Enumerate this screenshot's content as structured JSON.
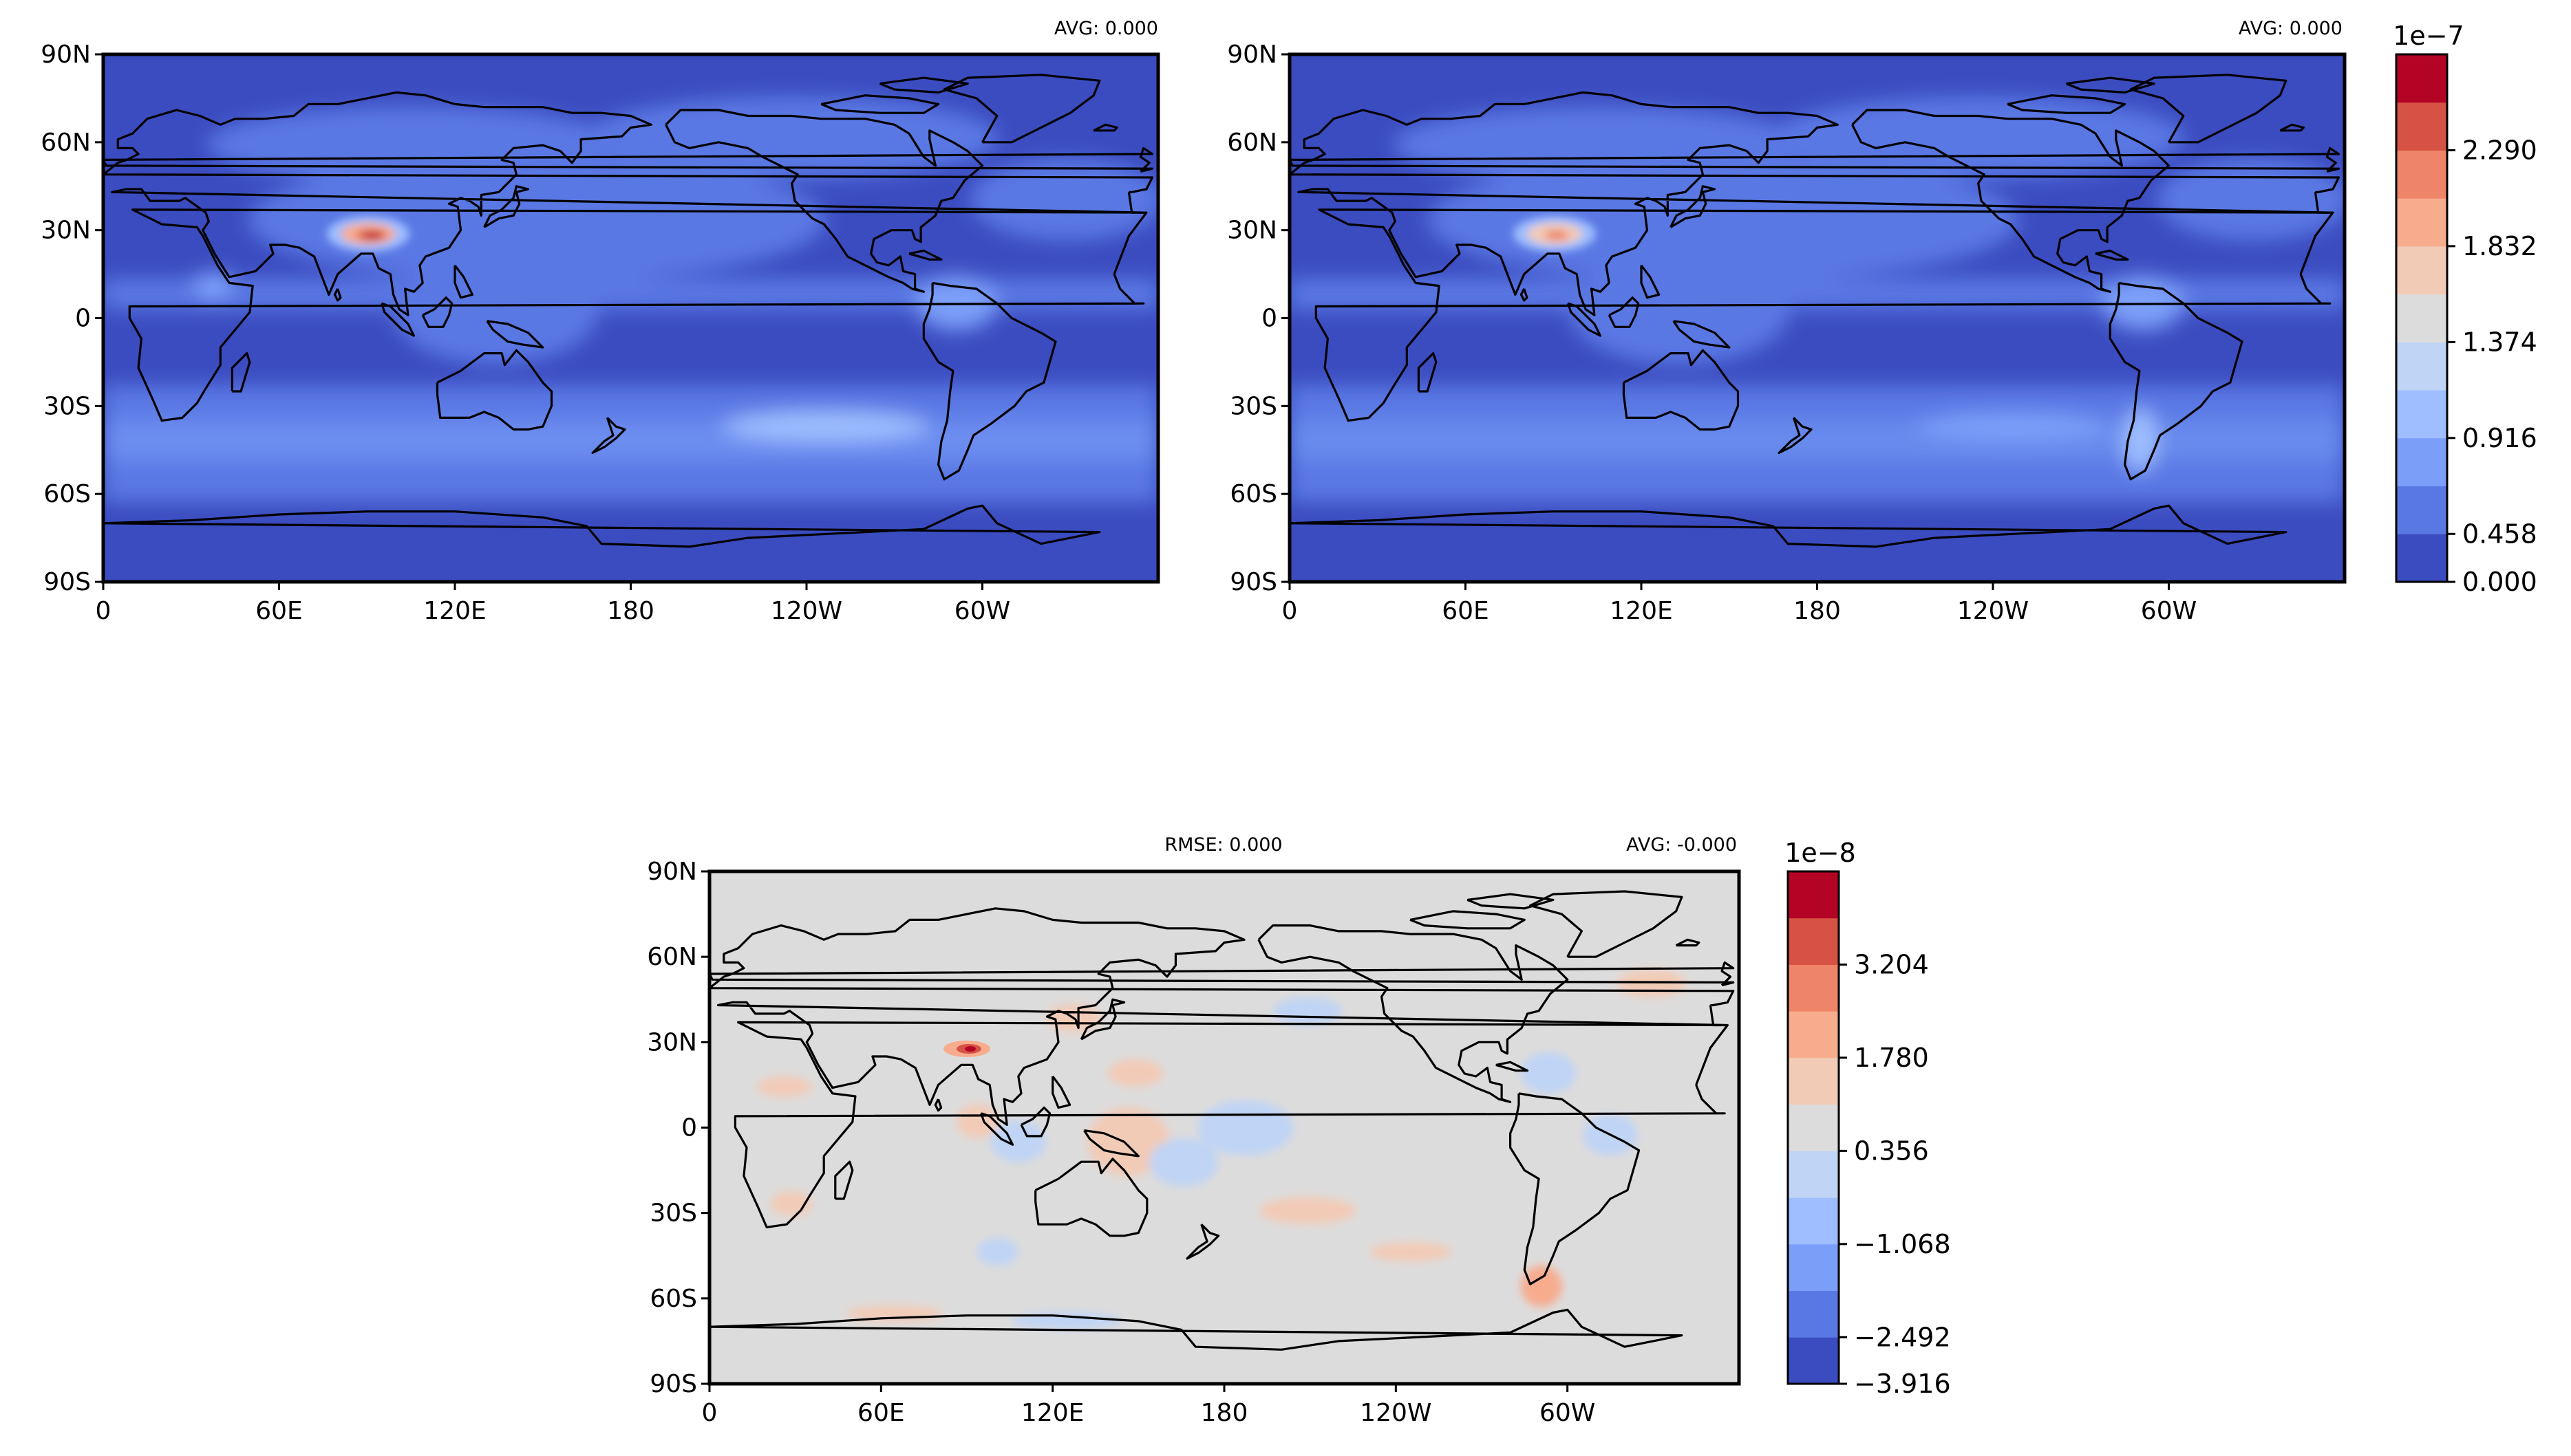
{
  "colors": {
    "seq": [
      "#3b4cc0",
      "#5a78e4",
      "#7b9ff9",
      "#9ebeff",
      "#c0d4f5",
      "#dddcdc",
      "#f2cbb7",
      "#f7ac8e",
      "#ee8468",
      "#d65244",
      "#b40426"
    ],
    "land_outline": "#000000",
    "frame": "#000000"
  },
  "maps": [
    {
      "id": "top-left",
      "avg_label": "AVG: 0.000",
      "rmse_label": "",
      "y_ticks": [
        "90N",
        "60N",
        "30N",
        "0",
        "30S",
        "60S",
        "90S"
      ],
      "x_ticks": [
        "0",
        "60E",
        "120E",
        "180",
        "120W",
        "60W"
      ],
      "background_level": 0
    },
    {
      "id": "top-right",
      "avg_label": "AVG: 0.000",
      "rmse_label": "",
      "y_ticks": [
        "90N",
        "60N",
        "30N",
        "0",
        "30S",
        "60S",
        "90S"
      ],
      "x_ticks": [
        "0",
        "60E",
        "120E",
        "180",
        "120W",
        "60W"
      ],
      "background_level": 0
    },
    {
      "id": "bottom-diff",
      "avg_label": "AVG: -0.000",
      "rmse_label": "RMSE: 0.000",
      "y_ticks": [
        "90N",
        "60N",
        "30N",
        "0",
        "30S",
        "60S",
        "90S"
      ],
      "x_ticks": [
        "0",
        "60E",
        "120E",
        "180",
        "120W",
        "60W"
      ],
      "background_level": 5
    }
  ],
  "colorbars": [
    {
      "id": "top-colorbar",
      "exponent": "1e−7",
      "tick_labels": [
        "2.290",
        "1.832",
        "1.374",
        "0.916",
        "0.458",
        "0.000"
      ],
      "levels": 11
    },
    {
      "id": "diff-colorbar",
      "exponent": "1e−8",
      "tick_labels": [
        "3.204",
        "1.780",
        "0.356",
        "−1.068",
        "−2.492",
        "−3.916"
      ],
      "levels": 11
    }
  ]
}
